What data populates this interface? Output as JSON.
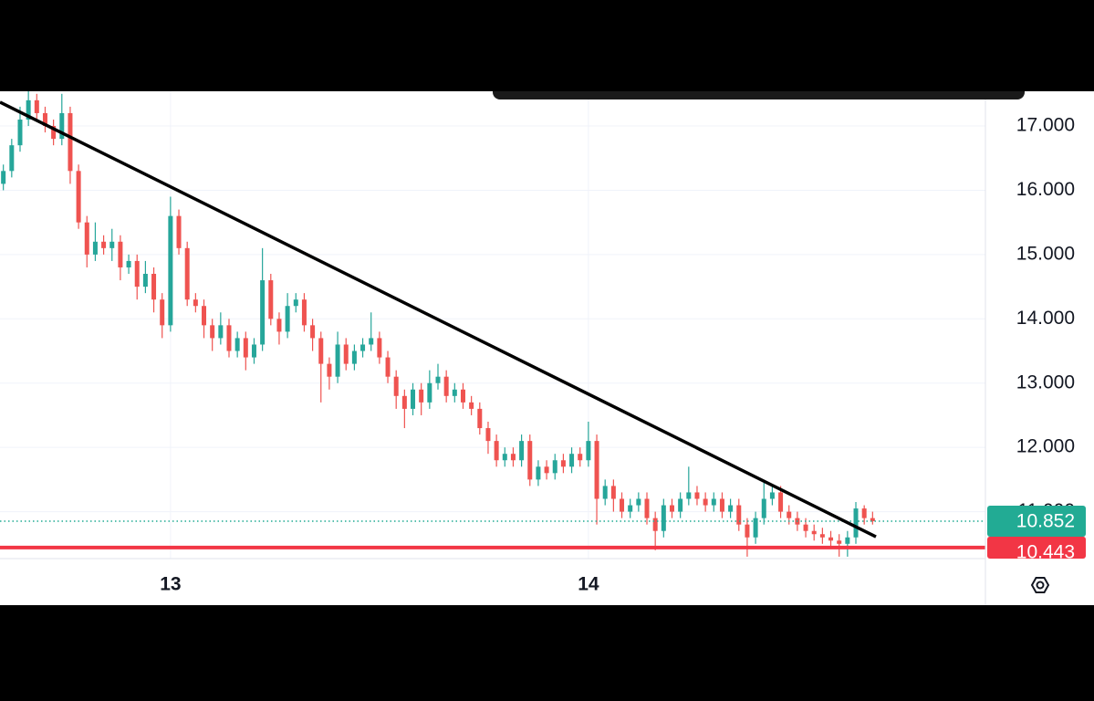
{
  "chart_data": {
    "type": "candlestick",
    "x": [
      12.6,
      12.62,
      12.64,
      12.66,
      12.68,
      12.7,
      12.72,
      12.74,
      12.76,
      12.78,
      12.8,
      12.82,
      12.84,
      12.86,
      12.88,
      12.9,
      12.92,
      12.94,
      12.96,
      12.98,
      13,
      13.02,
      13.04,
      13.06,
      13.08,
      13.1,
      13.12,
      13.14,
      13.16,
      13.18,
      13.2,
      13.22,
      13.24,
      13.26,
      13.28,
      13.3,
      13.32,
      13.34,
      13.36,
      13.38,
      13.4,
      13.42,
      13.44,
      13.46,
      13.48,
      13.5,
      13.52,
      13.54,
      13.56,
      13.58,
      13.6,
      13.62,
      13.64,
      13.66,
      13.68,
      13.7,
      13.72,
      13.74,
      13.76,
      13.78,
      13.8,
      13.82,
      13.84,
      13.86,
      13.88,
      13.9,
      13.92,
      13.94,
      13.96,
      13.98,
      14,
      14.02,
      14.04,
      14.06,
      14.08,
      14.1,
      14.12,
      14.14,
      14.16,
      14.18,
      14.2,
      14.22,
      14.24,
      14.26,
      14.28,
      14.3,
      14.32,
      14.34,
      14.36,
      14.38,
      14.4,
      14.42,
      14.44,
      14.46,
      14.48,
      14.5,
      14.52,
      14.54,
      14.56,
      14.58,
      14.6,
      14.62,
      14.64,
      14.66,
      14.68
    ],
    "open": [
      16.1,
      16.3,
      16.7,
      17.1,
      17.4,
      17.2,
      17.0,
      16.8,
      17.2,
      16.3,
      15.5,
      15.0,
      15.2,
      15.1,
      15.2,
      14.8,
      14.9,
      14.5,
      14.7,
      14.3,
      13.9,
      15.6,
      15.1,
      14.3,
      14.2,
      13.9,
      13.7,
      13.9,
      13.5,
      13.7,
      13.4,
      13.6,
      14.6,
      14.0,
      13.8,
      14.2,
      14.3,
      13.9,
      13.7,
      13.3,
      13.1,
      13.6,
      13.3,
      13.5,
      13.6,
      13.7,
      13.4,
      13.1,
      12.8,
      12.6,
      12.9,
      12.7,
      13.0,
      13.1,
      12.8,
      12.9,
      12.7,
      12.6,
      12.3,
      12.1,
      11.8,
      11.9,
      11.8,
      12.1,
      11.5,
      11.7,
      11.6,
      11.8,
      11.7,
      11.9,
      11.8,
      12.1,
      11.2,
      11.4,
      11.2,
      11.0,
      11.1,
      11.2,
      10.9,
      10.7,
      11.1,
      11.0,
      11.2,
      11.3,
      11.2,
      11.1,
      11.2,
      11.0,
      11.1,
      10.8,
      10.6,
      10.9,
      11.2,
      11.3,
      11.0,
      10.9,
      10.8,
      10.7,
      10.65,
      10.6,
      10.55,
      10.5,
      10.6,
      11.05,
      10.9
    ],
    "high": [
      16.4,
      16.8,
      17.3,
      17.6,
      17.5,
      17.3,
      17.1,
      17.5,
      17.3,
      16.4,
      15.6,
      15.5,
      15.3,
      15.4,
      15.3,
      15.0,
      15.0,
      14.9,
      14.8,
      14.4,
      15.9,
      15.7,
      15.2,
      14.4,
      14.3,
      14.0,
      14.1,
      14.0,
      13.8,
      13.8,
      13.7,
      15.1,
      14.7,
      14.1,
      14.4,
      14.4,
      14.4,
      14.0,
      13.8,
      13.4,
      13.8,
      13.7,
      13.6,
      13.7,
      14.1,
      13.8,
      13.5,
      13.2,
      12.9,
      13.0,
      13.0,
      13.2,
      13.3,
      13.2,
      13.0,
      13.0,
      12.8,
      12.7,
      12.4,
      12.2,
      12.0,
      12.0,
      12.2,
      12.2,
      11.8,
      11.8,
      11.9,
      11.9,
      12.0,
      12.0,
      12.4,
      12.2,
      11.5,
      11.5,
      11.3,
      11.2,
      11.3,
      11.3,
      11.0,
      11.2,
      11.2,
      11.3,
      11.7,
      11.4,
      11.3,
      11.3,
      11.3,
      11.2,
      11.2,
      10.9,
      11.0,
      11.45,
      11.4,
      11.4,
      11.1,
      11.0,
      10.9,
      10.8,
      10.75,
      10.7,
      10.65,
      10.7,
      11.15,
      11.1,
      11.0
    ],
    "low": [
      16.0,
      16.2,
      16.6,
      17.0,
      17.1,
      16.9,
      16.7,
      16.7,
      16.1,
      15.4,
      14.8,
      14.9,
      15.0,
      14.9,
      14.6,
      14.7,
      14.3,
      14.4,
      14.1,
      13.7,
      13.8,
      15.0,
      14.2,
      14.1,
      13.7,
      13.5,
      13.6,
      13.4,
      13.4,
      13.2,
      13.3,
      13.5,
      13.9,
      13.6,
      13.7,
      14.1,
      13.8,
      13.5,
      12.7,
      12.9,
      13.0,
      13.2,
      13.2,
      13.4,
      13.5,
      13.3,
      13.0,
      12.6,
      12.3,
      12.5,
      12.5,
      12.6,
      12.9,
      12.7,
      12.7,
      12.6,
      12.5,
      12.2,
      11.9,
      11.7,
      11.7,
      11.7,
      11.7,
      11.4,
      11.4,
      11.5,
      11.5,
      11.6,
      11.6,
      11.7,
      11.7,
      10.8,
      11.1,
      11.0,
      10.9,
      10.9,
      11.0,
      10.8,
      10.4,
      10.6,
      10.9,
      10.9,
      11.1,
      11.1,
      11.0,
      11.0,
      10.9,
      10.9,
      10.7,
      10.3,
      10.5,
      10.8,
      11.1,
      10.9,
      10.8,
      10.7,
      10.6,
      10.55,
      10.5,
      10.45,
      10.3,
      10.3,
      10.5,
      10.8,
      10.8
    ],
    "close": [
      16.3,
      16.7,
      17.1,
      17.4,
      17.2,
      17.0,
      16.8,
      17.2,
      16.3,
      15.5,
      15.0,
      15.2,
      15.1,
      15.2,
      14.8,
      14.9,
      14.5,
      14.7,
      14.3,
      13.9,
      15.6,
      15.1,
      14.3,
      14.2,
      13.9,
      13.7,
      13.9,
      13.5,
      13.7,
      13.4,
      13.6,
      14.6,
      14.0,
      13.8,
      14.2,
      14.3,
      13.9,
      13.7,
      13.3,
      13.1,
      13.6,
      13.3,
      13.5,
      13.6,
      13.7,
      13.4,
      13.1,
      12.8,
      12.6,
      12.9,
      12.7,
      13.0,
      13.1,
      12.8,
      12.9,
      12.7,
      12.6,
      12.3,
      12.1,
      11.8,
      11.9,
      11.8,
      12.1,
      11.5,
      11.7,
      11.6,
      11.8,
      11.7,
      11.9,
      11.8,
      12.1,
      11.2,
      11.4,
      11.2,
      11.0,
      11.1,
      11.2,
      10.9,
      10.7,
      11.1,
      11.0,
      11.2,
      11.3,
      11.2,
      11.1,
      11.2,
      11.0,
      11.1,
      10.8,
      10.6,
      10.9,
      11.2,
      11.3,
      11.0,
      10.9,
      10.8,
      10.7,
      10.65,
      10.6,
      10.55,
      10.5,
      10.6,
      11.05,
      10.9,
      10.852
    ],
    "up_color": "#26a69a",
    "down_color": "#ef5350",
    "xlim": [
      12.592,
      14.95
    ],
    "ylim": [
      10.27,
      17.54
    ],
    "xticks": [
      13,
      14
    ],
    "yticks": [
      {
        "value": 11,
        "label": "11.000"
      },
      {
        "value": 12,
        "label": "12.000"
      },
      {
        "value": 13,
        "label": "13.000"
      },
      {
        "value": 14,
        "label": "14.000"
      },
      {
        "value": 15,
        "label": "15.000"
      },
      {
        "value": 16,
        "label": "16.000"
      },
      {
        "value": 17,
        "label": "17.000"
      }
    ],
    "grid": true,
    "trend_line": {
      "x": [
        12.592,
        14.688
      ],
      "y": [
        17.37,
        10.61
      ],
      "color": "#000000"
    },
    "support_line": {
      "value": 10.443,
      "color": "#f23645"
    },
    "last_price": {
      "value": 10.852,
      "color": "#22ab94"
    }
  }
}
